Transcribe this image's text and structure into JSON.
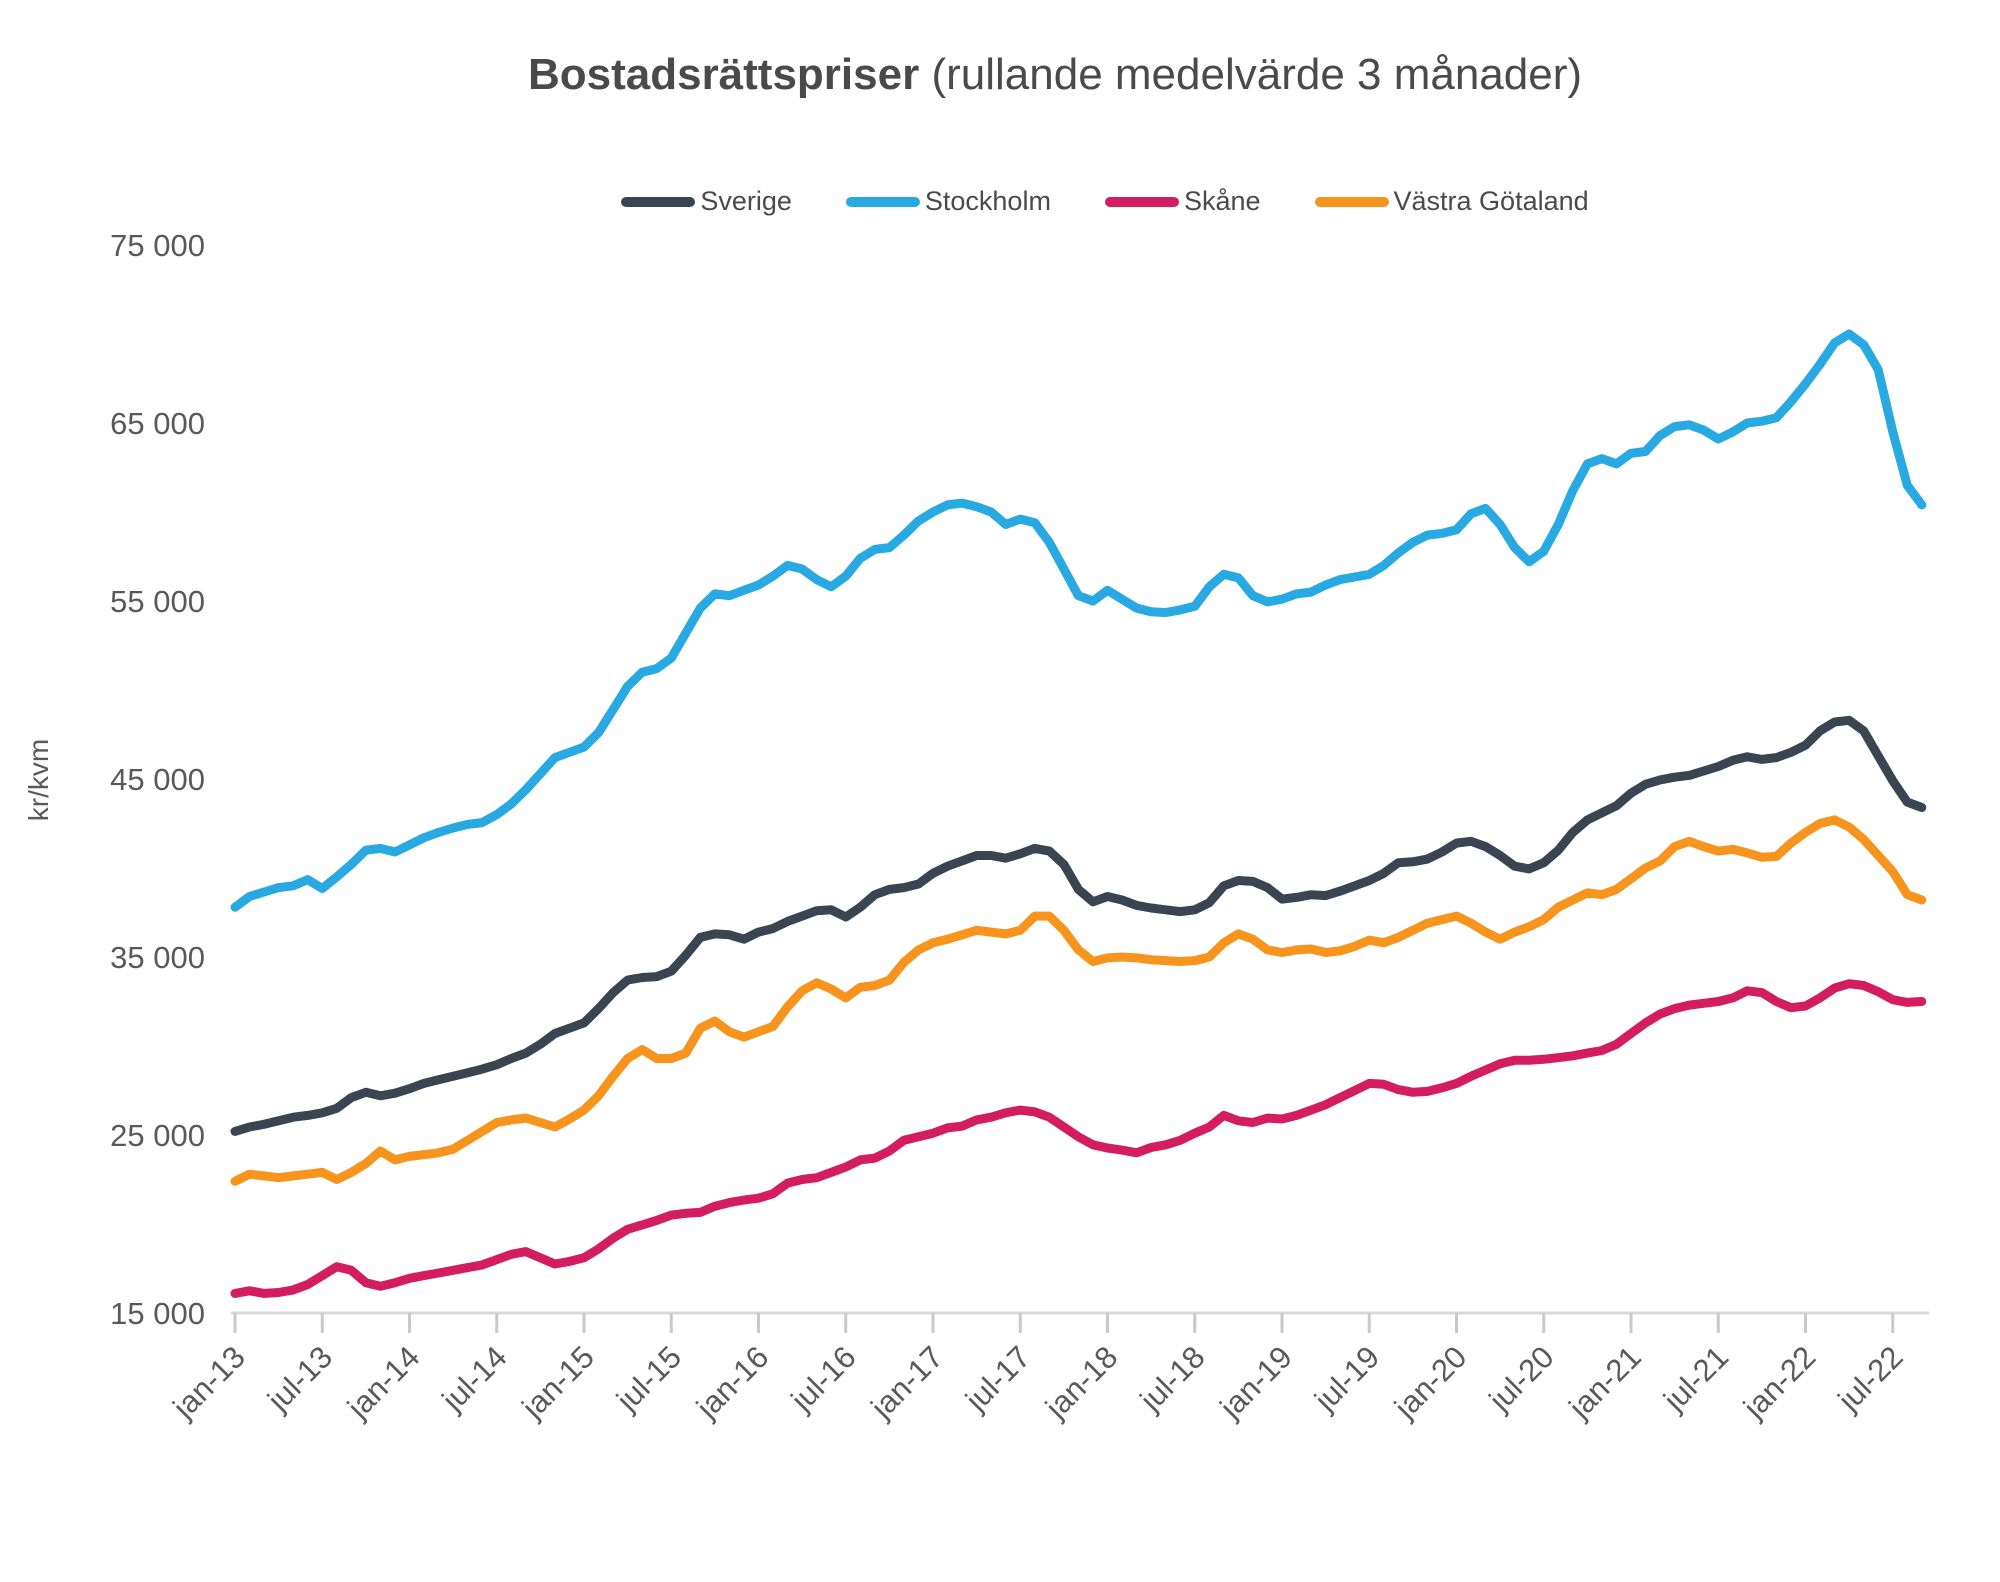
{
  "title": {
    "bold": "Bostadsrättspriser",
    "regular": " (rullande medelvärde 3 månader)"
  },
  "axes": {
    "y_title": "kr/kvm",
    "y_tick_labels": [
      "15 000",
      "25 000",
      "35 000",
      "45 000",
      "55 000",
      "65 000",
      "75 000"
    ],
    "x_tick_labels": [
      "jan-13",
      "jul-13",
      "jan-14",
      "jul-14",
      "jan-15",
      "jul-15",
      "jan-16",
      "jul-16",
      "jan-17",
      "jul-17",
      "jan-18",
      "jul-18",
      "jan-19",
      "jul-19",
      "jan-20",
      "jul-20",
      "jan-21",
      "jul-21",
      "jan-22",
      "jul-22"
    ]
  },
  "chart_data": {
    "type": "line",
    "title": "Bostadsrättspriser (rullande medelvärde 3 månader)",
    "ylabel": "kr/kvm",
    "ylim": [
      15000,
      75000
    ],
    "y_ticks": [
      15000,
      25000,
      35000,
      45000,
      55000,
      65000,
      75000
    ],
    "grid": false,
    "legend_position": "top",
    "x_unit": "month",
    "x_start": "jan-13",
    "x_end": "sep-22",
    "x_tick_every_months": 6,
    "series": [
      {
        "name": "Sverige",
        "color": "#3a4551",
        "values": [
          25200,
          25450,
          25600,
          25800,
          26000,
          26100,
          26250,
          26500,
          27100,
          27400,
          27200,
          27350,
          27600,
          27900,
          28100,
          28300,
          28500,
          28700,
          28950,
          29300,
          29600,
          30100,
          30700,
          31000,
          31300,
          32100,
          33000,
          33700,
          33850,
          33900,
          34200,
          35100,
          36100,
          36300,
          36250,
          36000,
          36400,
          36600,
          37000,
          37300,
          37600,
          37650,
          37250,
          37800,
          38500,
          38800,
          38900,
          39100,
          39700,
          40100,
          40400,
          40700,
          40700,
          40550,
          40800,
          41100,
          40950,
          40200,
          38800,
          38100,
          38400,
          38200,
          37900,
          37750,
          37650,
          37550,
          37650,
          38050,
          39000,
          39300,
          39250,
          38900,
          38250,
          38350,
          38500,
          38450,
          38700,
          39000,
          39300,
          39700,
          40300,
          40350,
          40500,
          40900,
          41400,
          41500,
          41200,
          40700,
          40100,
          39950,
          40300,
          41000,
          42000,
          42700,
          43100,
          43500,
          44200,
          44700,
          44950,
          45100,
          45200,
          45450,
          45700,
          46050,
          46250,
          46100,
          46200,
          46500,
          46900,
          47700,
          48200,
          48300,
          47700,
          46300,
          44900,
          43700,
          43400
        ]
      },
      {
        "name": "Stockholm",
        "color": "#29a9e1",
        "values": [
          37800,
          38400,
          38650,
          38900,
          39000,
          39350,
          38850,
          39500,
          40200,
          41000,
          41100,
          40900,
          41300,
          41700,
          42000,
          42250,
          42450,
          42550,
          43000,
          43600,
          44400,
          45300,
          46200,
          46500,
          46800,
          47600,
          48900,
          50200,
          51000,
          51200,
          51800,
          53200,
          54600,
          55400,
          55300,
          55600,
          55900,
          56400,
          57000,
          56800,
          56200,
          55800,
          56400,
          57400,
          57900,
          58000,
          58700,
          59500,
          60000,
          60400,
          60500,
          60300,
          60000,
          59300,
          59600,
          59400,
          58300,
          56800,
          55300,
          55000,
          55600,
          55100,
          54600,
          54400,
          54350,
          54500,
          54700,
          55800,
          56500,
          56300,
          55300,
          54950,
          55100,
          55400,
          55500,
          55900,
          56200,
          56350,
          56500,
          57000,
          57700,
          58300,
          58700,
          58800,
          59000,
          59900,
          60200,
          59300,
          58000,
          57200,
          57800,
          59300,
          61200,
          62700,
          63000,
          62700,
          63300,
          63400,
          64300,
          64800,
          64900,
          64600,
          64100,
          64500,
          65000,
          65100,
          65300,
          66200,
          67200,
          68300,
          69500,
          70000,
          69400,
          68000,
          64500,
          61500,
          60400
        ]
      },
      {
        "name": "Skåne",
        "color": "#d41c60",
        "values": [
          16100,
          16250,
          16100,
          16150,
          16300,
          16600,
          17100,
          17600,
          17400,
          16700,
          16500,
          16700,
          16950,
          17100,
          17250,
          17400,
          17550,
          17700,
          18000,
          18300,
          18450,
          18100,
          17750,
          17900,
          18100,
          18600,
          19200,
          19700,
          19950,
          20200,
          20500,
          20600,
          20650,
          21000,
          21200,
          21350,
          21450,
          21700,
          22300,
          22500,
          22600,
          22900,
          23200,
          23600,
          23700,
          24100,
          24700,
          24900,
          25100,
          25400,
          25500,
          25850,
          26000,
          26250,
          26400,
          26300,
          26000,
          25450,
          24900,
          24450,
          24270,
          24150,
          24000,
          24300,
          24450,
          24700,
          25100,
          25450,
          26100,
          25800,
          25700,
          25950,
          25900,
          26100,
          26400,
          26700,
          27100,
          27500,
          27900,
          27850,
          27550,
          27400,
          27450,
          27650,
          27900,
          28300,
          28650,
          29000,
          29200,
          29200,
          29250,
          29350,
          29450,
          29600,
          29750,
          30100,
          30700,
          31300,
          31800,
          32100,
          32300,
          32400,
          32500,
          32700,
          33100,
          33000,
          32500,
          32150,
          32250,
          32700,
          33250,
          33500,
          33400,
          33050,
          32600,
          32450,
          32500
        ]
      },
      {
        "name": "Västra Götaland",
        "color": "#f7941d",
        "values": [
          22400,
          22800,
          22700,
          22600,
          22700,
          22800,
          22900,
          22500,
          22900,
          23400,
          24100,
          23600,
          23800,
          23900,
          24000,
          24200,
          24700,
          25200,
          25700,
          25850,
          25950,
          25700,
          25450,
          25900,
          26400,
          27200,
          28300,
          29300,
          29800,
          29300,
          29300,
          29600,
          31000,
          31400,
          30800,
          30500,
          30800,
          31100,
          32200,
          33100,
          33550,
          33200,
          32700,
          33300,
          33400,
          33700,
          34700,
          35400,
          35800,
          36000,
          36250,
          36500,
          36400,
          36300,
          36500,
          37300,
          37300,
          36500,
          35400,
          34750,
          34950,
          35000,
          34950,
          34850,
          34800,
          34750,
          34800,
          35000,
          35800,
          36300,
          36000,
          35400,
          35250,
          35400,
          35450,
          35250,
          35350,
          35600,
          35950,
          35800,
          36100,
          36500,
          36900,
          37100,
          37300,
          36900,
          36400,
          36000,
          36400,
          36700,
          37100,
          37800,
          38200,
          38600,
          38500,
          38800,
          39400,
          40000,
          40400,
          41200,
          41500,
          41200,
          40950,
          41050,
          40850,
          40600,
          40650,
          41400,
          42000,
          42500,
          42700,
          42300,
          41600,
          40700,
          39800,
          38500,
          38200
        ]
      }
    ]
  },
  "colors": {
    "title_text": "#4a4a4a",
    "tick_text": "#595959",
    "axis_line": "#d9d9d9",
    "tick_mark": "#c9c9c9"
  }
}
